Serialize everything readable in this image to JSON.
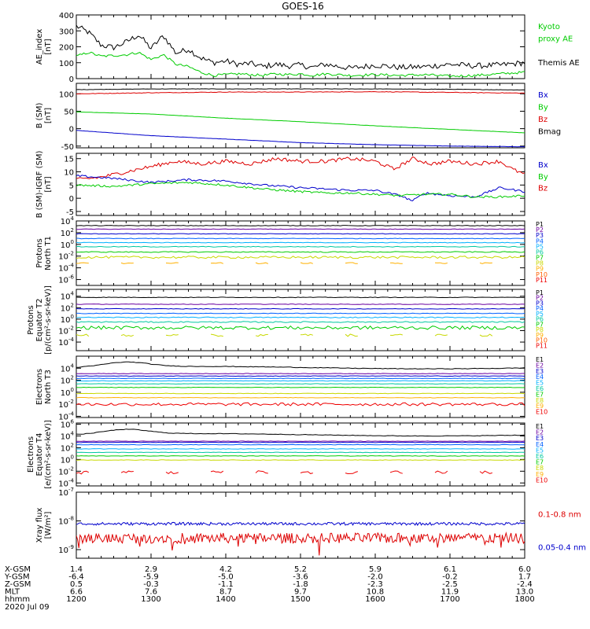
{
  "title": "GOES-16",
  "colors": {
    "black": "#000000",
    "blue": "#0000cc",
    "green": "#00cc00",
    "red": "#dd0000"
  },
  "chart_data": [
    {
      "type": "line",
      "id": "ae",
      "ylabel": [
        "AE_index",
        "[nT]"
      ],
      "ylim": [
        0,
        400
      ],
      "ticks": [
        {
          "v": 0,
          "t": "0"
        },
        {
          "v": 100,
          "t": "100"
        },
        {
          "v": 200,
          "t": "200"
        },
        {
          "v": 300,
          "t": "300"
        },
        {
          "v": 400,
          "t": "400"
        }
      ],
      "legend": [
        {
          "text": "Kyoto",
          "color": "green",
          "lv": 0
        },
        {
          "text": "proxy AE",
          "color": "green",
          "lv": 1
        },
        {
          "text": "Themis AE",
          "color": "black",
          "lv": 3
        }
      ],
      "series": [
        {
          "name": "Themis AE",
          "color": "black",
          "x": [
            0,
            10,
            20,
            30,
            40,
            50,
            60,
            70,
            80,
            90,
            100,
            110,
            120,
            130,
            140,
            150,
            160,
            170,
            180,
            190,
            200,
            220,
            240,
            260,
            280,
            300,
            320,
            340,
            360
          ],
          "values": [
            330,
            290,
            210,
            195,
            230,
            275,
            190,
            270,
            160,
            185,
            130,
            100,
            110,
            90,
            95,
            75,
            90,
            80,
            85,
            70,
            90,
            65,
            85,
            70,
            75,
            90,
            80,
            85,
            100
          ],
          "noise": 18
        },
        {
          "name": "Kyoto proxy AE",
          "color": "green",
          "x": [
            0,
            10,
            20,
            30,
            40,
            50,
            60,
            70,
            80,
            90,
            100,
            110,
            120,
            130,
            140,
            150,
            160,
            170,
            180,
            190,
            200,
            220,
            240,
            260,
            280,
            300,
            320,
            340,
            360
          ],
          "values": [
            140,
            165,
            140,
            145,
            150,
            165,
            120,
            150,
            90,
            75,
            40,
            20,
            25,
            30,
            25,
            20,
            30,
            25,
            30,
            20,
            30,
            20,
            25,
            20,
            25,
            15,
            20,
            30,
            40
          ],
          "noise": 8
        }
      ]
    },
    {
      "type": "line",
      "id": "bsm",
      "ylabel": [
        "B (SM)",
        "[nT]"
      ],
      "ylim": [
        -55,
        130
      ],
      "ticks": [
        {
          "v": -50,
          "t": "-50"
        },
        {
          "v": 0,
          "t": "0"
        },
        {
          "v": 50,
          "t": "50"
        },
        {
          "v": 100,
          "t": "100"
        }
      ],
      "legend": [
        {
          "text": "Bx",
          "color": "blue",
          "lv": 0
        },
        {
          "text": "By",
          "color": "green",
          "lv": 1
        },
        {
          "text": "Bz",
          "color": "red",
          "lv": 2
        },
        {
          "text": "Bmag",
          "color": "black",
          "lv": 3
        }
      ],
      "series": [
        {
          "name": "Bmag",
          "color": "black",
          "x": [
            0,
            60,
            120,
            180,
            240,
            300,
            360
          ],
          "values": [
            112,
            114,
            114,
            114,
            114,
            113,
            111
          ],
          "noise": 0.5
        },
        {
          "name": "Bz",
          "color": "red",
          "x": [
            0,
            60,
            120,
            180,
            240,
            300,
            360
          ],
          "values": [
            100,
            103,
            105,
            105,
            106,
            104,
            102
          ],
          "noise": 0.8
        },
        {
          "name": "By",
          "color": "green",
          "x": [
            0,
            60,
            120,
            180,
            240,
            300,
            360
          ],
          "values": [
            48,
            42,
            30,
            20,
            8,
            -2,
            -12
          ],
          "noise": 0.3
        },
        {
          "name": "Bx",
          "color": "blue",
          "x": [
            0,
            60,
            120,
            180,
            240,
            300,
            360
          ],
          "values": [
            -5,
            -20,
            -30,
            -40,
            -46,
            -50,
            -52
          ],
          "noise": 0.3
        }
      ]
    },
    {
      "type": "line",
      "id": "bdiff",
      "ylabel": [
        "B (SM)-IGRF (SM)",
        "[nT]"
      ],
      "ylim": [
        -6.5,
        17
      ],
      "ticks": [
        {
          "v": -5,
          "t": "-5"
        },
        {
          "v": 0,
          "t": "0"
        },
        {
          "v": 5,
          "t": "5"
        },
        {
          "v": 10,
          "t": "10"
        },
        {
          "v": 15,
          "t": "15"
        }
      ],
      "legend": [
        {
          "text": "Bx",
          "color": "blue",
          "lv": 0
        },
        {
          "text": "By",
          "color": "green",
          "lv": 1
        },
        {
          "text": "Bz",
          "color": "red",
          "lv": 2
        }
      ],
      "series": [
        {
          "name": "Bz",
          "color": "red",
          "x": [
            0,
            20,
            40,
            60,
            80,
            100,
            120,
            140,
            160,
            180,
            200,
            220,
            240,
            255,
            270,
            285,
            300,
            320,
            340,
            350,
            360
          ],
          "values": [
            7,
            8,
            10,
            12,
            14,
            13,
            14,
            13,
            15,
            14,
            14,
            15,
            14,
            11,
            15,
            13,
            14,
            13,
            14,
            11,
            9
          ],
          "noise": 0.7
        },
        {
          "name": "Bx",
          "color": "blue",
          "x": [
            0,
            30,
            60,
            90,
            120,
            150,
            180,
            200,
            220,
            240,
            260,
            270,
            280,
            300,
            320,
            340,
            360
          ],
          "values": [
            8.5,
            7.5,
            6,
            7,
            6.5,
            5,
            4,
            3.5,
            3,
            3,
            1,
            -1,
            2,
            1,
            0.5,
            4,
            2.5
          ],
          "noise": 0.4
        },
        {
          "name": "By",
          "color": "green",
          "x": [
            0,
            30,
            60,
            90,
            120,
            150,
            180,
            200,
            220,
            240,
            260,
            280,
            300,
            320,
            340,
            360
          ],
          "values": [
            5,
            4.5,
            5.5,
            6,
            5,
            3.5,
            2.5,
            2,
            2,
            1.5,
            1,
            1.5,
            1.5,
            0.5,
            0.5,
            1
          ],
          "noise": 0.4
        }
      ]
    },
    {
      "type": "logline",
      "id": "pnorth",
      "ylabel": [
        "Protons",
        "North T1"
      ],
      "ylim_log": [
        -7,
        4
      ],
      "ticks": [
        {
          "e": 4
        },
        {
          "e": 2
        },
        {
          "e": 0
        },
        {
          "e": -2
        },
        {
          "e": -4
        },
        {
          "e": -6
        }
      ],
      "channels": [
        "P1",
        "P2",
        "P3",
        "P4",
        "P5",
        "P6",
        "P7",
        "P8",
        "P9",
        "P10",
        "P11"
      ],
      "chcolors": [
        "#000000",
        "#6a00a0",
        "#0000cc",
        "#0060ff",
        "#00b0ff",
        "#00c8a0",
        "#00cc00",
        "#c8d800",
        "#ffb000",
        "#ff6000",
        "#ee0000"
      ],
      "levels": [
        3.2,
        2.6,
        1.8,
        1.0,
        0.3,
        -0.4,
        -1.3,
        -2.2,
        -3.2,
        null,
        null
      ],
      "noise": [
        0.05,
        0.05,
        0.05,
        0.05,
        0.05,
        0.06,
        0.08,
        0.2,
        0.1,
        0,
        0
      ],
      "gappy": [
        false,
        false,
        false,
        false,
        false,
        false,
        false,
        false,
        true,
        false,
        false
      ]
    },
    {
      "type": "logline",
      "id": "peq",
      "ylabel": [
        "Protons",
        "Equator T2",
        "[p/(cm²-s-sr-keV)]"
      ],
      "ylim_log": [
        -5.5,
        5.2
      ],
      "ticks": [
        {
          "e": 4
        },
        {
          "e": 2
        },
        {
          "e": 0
        },
        {
          "e": -2
        },
        {
          "e": -4
        }
      ],
      "channels": [
        "P1",
        "P2",
        "P3",
        "P4",
        "P5",
        "P6",
        "P7",
        "P8",
        "P9",
        "P10",
        "P11"
      ],
      "chcolors": [
        "#000000",
        "#6a00a0",
        "#0000cc",
        "#0060ff",
        "#00b0ff",
        "#00c8a0",
        "#00cc00",
        "#c8d800",
        "#ffb000",
        "#ff6000",
        "#ee0000"
      ],
      "levels": [
        3.8,
        2.6,
        1.8,
        1.0,
        0.3,
        -0.5,
        -1.5,
        -2.8,
        null,
        null,
        null
      ],
      "noise": [
        0.05,
        0.05,
        0.05,
        0.05,
        0.08,
        0.1,
        0.3,
        0.2,
        0,
        0,
        0
      ],
      "gappy": [
        false,
        false,
        false,
        false,
        false,
        false,
        false,
        true,
        false,
        false,
        false
      ]
    },
    {
      "type": "logline",
      "id": "enorth",
      "ylabel": [
        "Electrons",
        "North T3"
      ],
      "ylim_log": [
        -4.2,
        6
      ],
      "ticks": [
        {
          "e": 4
        },
        {
          "e": 2
        },
        {
          "e": 0
        },
        {
          "e": -2
        },
        {
          "e": -4
        }
      ],
      "channels": [
        "E1",
        "E2",
        "E3",
        "E4",
        "E5",
        "E6",
        "E7",
        "E8",
        "E9",
        "E10"
      ],
      "chcolors": [
        "#000000",
        "#6a00a0",
        "#0000cc",
        "#0060ff",
        "#00b0ff",
        "#00c8a0",
        "#00cc00",
        "#c8d800",
        "#ffb000",
        "#ee0000"
      ],
      "levels": [
        4.1,
        3.1,
        2.7,
        2.3,
        1.9,
        1.4,
        0.8,
        -0.2,
        -0.9,
        -2.0
      ],
      "noise": [
        0.05,
        0.04,
        0.04,
        0.04,
        0.04,
        0.04,
        0.04,
        0.04,
        0.04,
        0.25
      ],
      "gappy": [
        false,
        false,
        false,
        false,
        false,
        false,
        false,
        false,
        false,
        false
      ],
      "bump": [
        0,
        1.0
      ]
    },
    {
      "type": "logline",
      "id": "eeq",
      "ylabel": [
        "Electrons",
        "Equator T4",
        "[e/(cm²-s-sr-keV)]"
      ],
      "ylim_log": [
        -4.5,
        6.2
      ],
      "ticks": [
        {
          "e": 6
        },
        {
          "e": 4
        },
        {
          "e": 2
        },
        {
          "e": 0
        },
        {
          "e": -2
        },
        {
          "e": -4
        }
      ],
      "channels": [
        "E1",
        "E2",
        "E3",
        "E4",
        "E5",
        "E6",
        "E7",
        "E8",
        "E9",
        "E10"
      ],
      "chcolors": [
        "#000000",
        "#6a00a0",
        "#0000cc",
        "#0060ff",
        "#00b0ff",
        "#00c8a0",
        "#00cc00",
        "#c8d800",
        "#ffb000",
        "#ee0000"
      ],
      "levels": [
        4.2,
        3.1,
        2.9,
        2.5,
        1.8,
        1.2,
        0.6,
        -0.1,
        null,
        -2.2
      ],
      "noise": [
        0.05,
        0.04,
        0.04,
        0.04,
        0.04,
        0.04,
        0.04,
        0.04,
        0,
        0.3
      ],
      "gappy": [
        false,
        false,
        false,
        false,
        false,
        false,
        false,
        false,
        false,
        true
      ],
      "bump": [
        0,
        1.0
      ]
    },
    {
      "type": "logline",
      "id": "xray",
      "ylabel": [
        "Xray flux",
        "[W/m²]"
      ],
      "ylim_log": [
        -9.3,
        -7
      ],
      "ticks": [
        {
          "e": -7
        },
        {
          "e": -8
        },
        {
          "e": -9
        }
      ],
      "legend": [
        {
          "text": "0.1-0.8 nm",
          "color": "red",
          "lv": 0.28
        },
        {
          "text": "0.05-0.4 nm",
          "color": "blue",
          "lv": 0.78
        }
      ],
      "levels": [
        -8.1,
        -8.6
      ],
      "colors": [
        "#0000cc",
        "#dd0000"
      ],
      "noise": [
        0.05,
        0.18
      ]
    }
  ],
  "xaxis": {
    "ticks": [
      "1200",
      "1300",
      "1400",
      "1500",
      "1600",
      "1700",
      "1800"
    ],
    "rows": [
      {
        "label": "X-GSM",
        "values": [
          "1.4",
          "2.9",
          "4.2",
          "5.2",
          "5.9",
          "6.1",
          "6.0"
        ]
      },
      {
        "label": "Y-GSM",
        "values": [
          "-6.4",
          "-5.9",
          "-5.0",
          "-3.6",
          "-2.0",
          "-0.2",
          "1.7"
        ]
      },
      {
        "label": "Z-GSM",
        "values": [
          "0.5",
          "-0.3",
          "-1.1",
          "-1.8",
          "-2.3",
          "-2.5",
          "-2.4"
        ]
      },
      {
        "label": "MLT",
        "values": [
          "6.6",
          "7.6",
          "8.7",
          "9.7",
          "10.8",
          "11.9",
          "13.0"
        ]
      },
      {
        "label": "hhmm",
        "values": [
          "1200",
          "1300",
          "1400",
          "1500",
          "1600",
          "1700",
          "1800"
        ]
      }
    ],
    "date": "2020 Jul 09"
  }
}
